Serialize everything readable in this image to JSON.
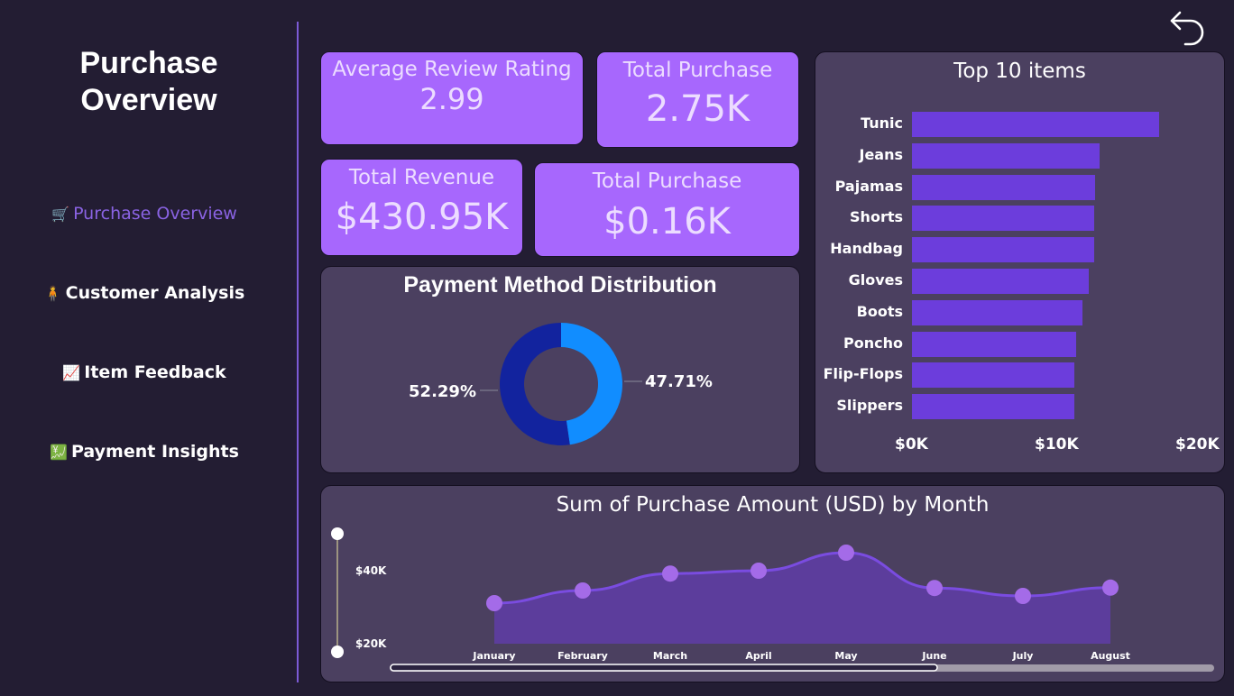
{
  "sidebar": {
    "title": "Purchase Overview",
    "items": [
      {
        "icon": "🛒",
        "label": "Purchase Overview",
        "active": true
      },
      {
        "icon": "🧍",
        "label": "Customer Analysis",
        "active": false
      },
      {
        "icon": "📈",
        "label": "Item Feedback",
        "active": false
      },
      {
        "icon": "💹",
        "label": "Payment Insights",
        "active": false
      }
    ]
  },
  "kpis": {
    "avg_rating_label": "Average Review Rating",
    "avg_rating_value": "2.99",
    "total_purchase_label": "Total Purchase",
    "total_purchase_value": "2.75K",
    "total_revenue_label": "Total Revenue",
    "total_revenue_value": "$430.95K",
    "total_purchase2_label": "Total Purchase",
    "total_purchase2_value": "$0.16K"
  },
  "colors": {
    "background": "#231d33",
    "kpi": "#a767fd",
    "panel": "#4b4060",
    "bar": "#6c3ddc",
    "donut_a": "#118dff",
    "donut_b": "#12239e",
    "area": "#5c3d9c",
    "line_points": "#a46be8"
  },
  "chart_data": [
    {
      "type": "pie",
      "title": "Payment Method Distribution",
      "values": [
        47.71,
        52.29
      ],
      "labels": [
        "47.71%",
        "52.29%"
      ],
      "colors": [
        "#118dff",
        "#12239e"
      ],
      "donut": true
    },
    {
      "type": "bar",
      "orientation": "horizontal",
      "title": "Top 10 items",
      "categories": [
        "Tunic",
        "Jeans",
        "Pajamas",
        "Shorts",
        "Handbag",
        "Gloves",
        "Boots",
        "Poncho",
        "Flip-Flops",
        "Slippers"
      ],
      "values": [
        17500,
        13300,
        13000,
        12900,
        12900,
        12500,
        12100,
        11600,
        11500,
        11500
      ],
      "xlim": [
        0,
        20000
      ],
      "xticks": [
        "$0K",
        "$10K",
        "$20K"
      ]
    },
    {
      "type": "area",
      "title": "Sum of Purchase Amount (USD) by Month",
      "categories": [
        "January",
        "February",
        "March",
        "April",
        "May",
        "June",
        "July",
        "August"
      ],
      "values": [
        31000,
        34500,
        39200,
        40000,
        45000,
        35200,
        33000,
        35300
      ],
      "ylim": [
        20000,
        48000
      ],
      "yticks": [
        "$40K",
        "$20K"
      ]
    }
  ]
}
